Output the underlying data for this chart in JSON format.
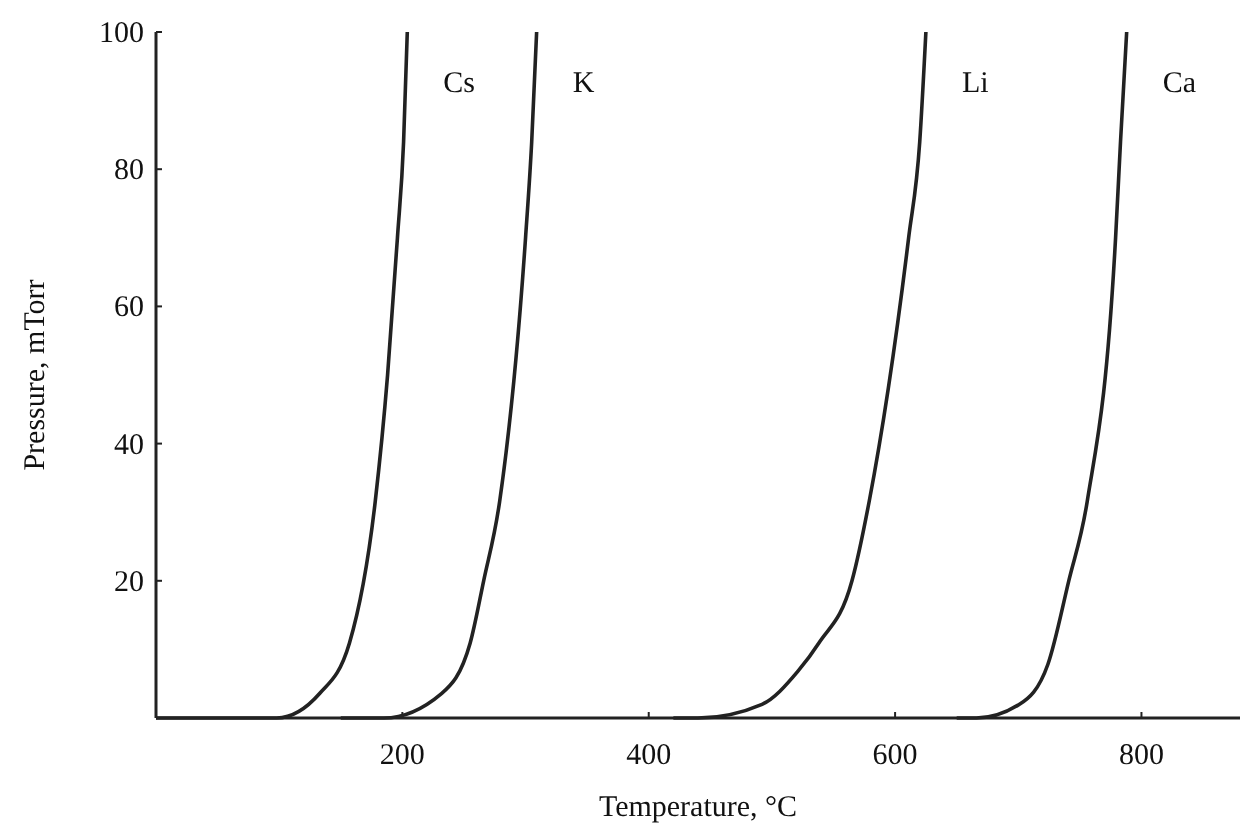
{
  "chart_data": {
    "type": "line",
    "xlabel": "Temperature, °C",
    "ylabel": "Pressure, mTorr",
    "xlim": [
      0,
      880
    ],
    "ylim": [
      0,
      100
    ],
    "xticks": [
      200,
      400,
      600,
      800
    ],
    "yticks": [
      {
        "value": 0,
        "label": null
      },
      20,
      40,
      60,
      80,
      100
    ],
    "legend": false,
    "grid": false,
    "marker": "none",
    "line_style": "solid",
    "series": [
      {
        "name": "Cs",
        "color": "#222222",
        "x": [
          0,
          98,
          133,
          157,
          178,
          188,
          196,
          201,
          204
        ],
        "values": [
          0,
          0,
          3.6,
          10.9,
          31.6,
          50,
          70,
          84,
          100
        ]
      },
      {
        "name": "K",
        "color": "#222222",
        "x": [
          150,
          185,
          232,
          255,
          266,
          279,
          300,
          305,
          309
        ],
        "values": [
          0,
          0,
          3.6,
          10.9,
          20,
          31.6,
          70,
          84,
          100
        ]
      },
      {
        "name": "Li",
        "color": "#222222",
        "x": [
          420,
          440,
          492,
          521,
          538,
          565,
          579,
          611,
          620,
          625
        ],
        "values": [
          0,
          0,
          2,
          6.8,
          10.9,
          20,
          31.6,
          70,
          84,
          100
        ]
      },
      {
        "name": "Ca",
        "color": "#222222",
        "x": [
          650,
          666,
          701,
          724,
          741,
          756,
          779,
          783,
          788
        ],
        "values": [
          0,
          0,
          2,
          7.8,
          20,
          31.6,
          70,
          84,
          100
        ]
      }
    ]
  }
}
